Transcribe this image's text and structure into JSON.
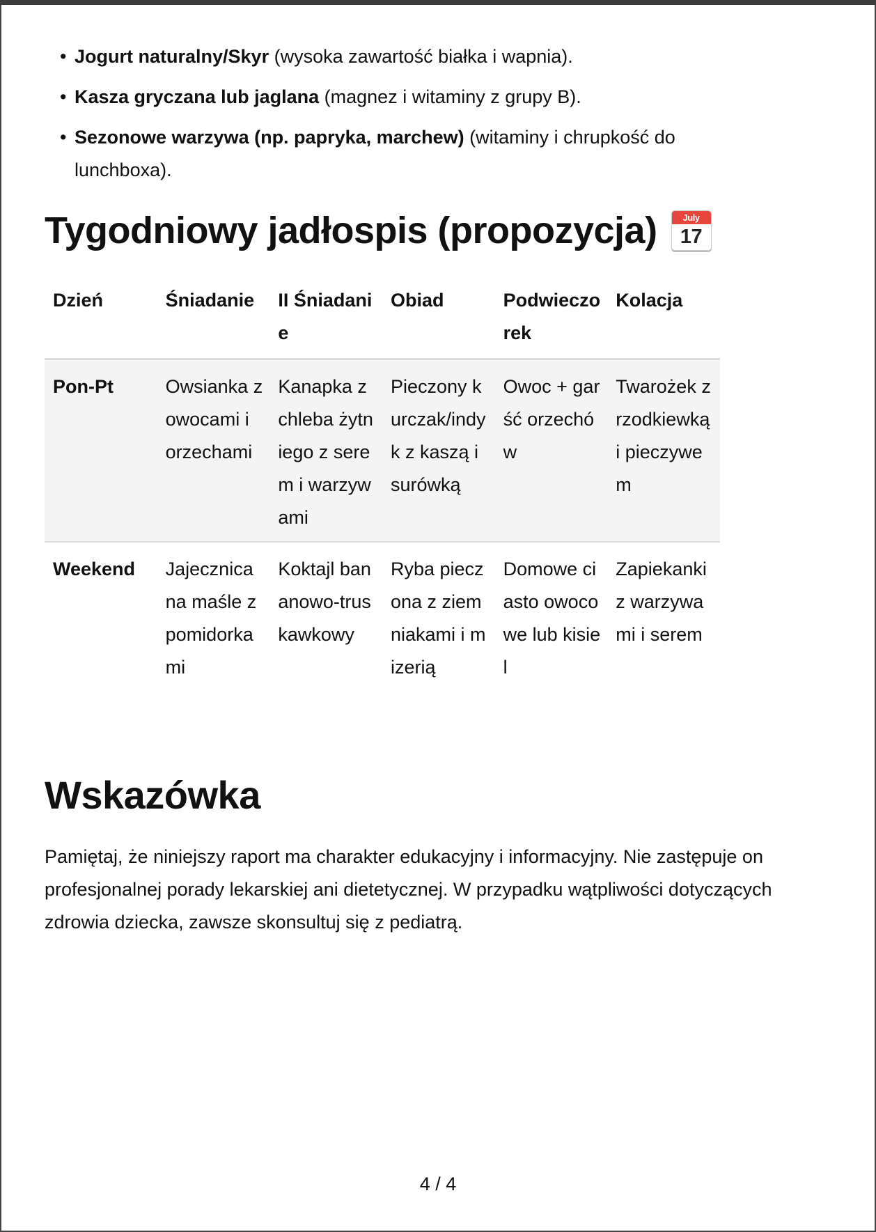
{
  "bullets": [
    {
      "bold": "Jogurt naturalny/Skyr",
      "rest": " (wysoka zawartość białka i wapnia)."
    },
    {
      "bold": "Kasza gryczana lub jaglana",
      "rest": " (magnez i witaminy z grupy B)."
    },
    {
      "bold": "Sezonowe warzywa (np. papryka, marchew)",
      "rest": " (witaminy i chrupkość do lunchboxa)."
    }
  ],
  "menu_heading": "Tygodniowy jadłospis (propozycja)",
  "calendar_emoji": {
    "icon": "calendar-icon",
    "month": "July",
    "day": "17",
    "color": "#e8453c"
  },
  "table": {
    "headers": [
      "Dzień",
      "Śniadanie",
      "II Śniadanie",
      "Obiad",
      "Podwieczorek",
      "Kolacja"
    ],
    "rows": [
      [
        "Pon-Pt",
        "Owsianka z owocami i orzechami",
        "Kanapka z chleba żytniego z serem i warzywami",
        "Pieczony kurczak/indyk z kaszą i surówką",
        "Owoc + garść orzechów",
        "Twarożek z rzodkiewką i pieczywem"
      ],
      [
        "Weekend",
        "Jajecznica na maśle z pomidorkami",
        "Koktajl bananowo-truskawkowy",
        "Ryba pieczona z ziemniakami i mizerią",
        "Domowe ciasto owocowe lub kisiel",
        "Zapiekanki z warzywami i serem"
      ]
    ]
  },
  "tip_heading": "Wskazówka",
  "tip_text": "Pamiętaj, że niniejszy raport ma charakter edukacyjny i informacyjny. Nie zastępuje on profesjonalnej porady lekarskiej ani dietetycznej. W przypadku wątpliwości dotyczących zdrowia dziecka, zawsze skonsultuj się z pediatrą.",
  "page_number": "4 / 4"
}
